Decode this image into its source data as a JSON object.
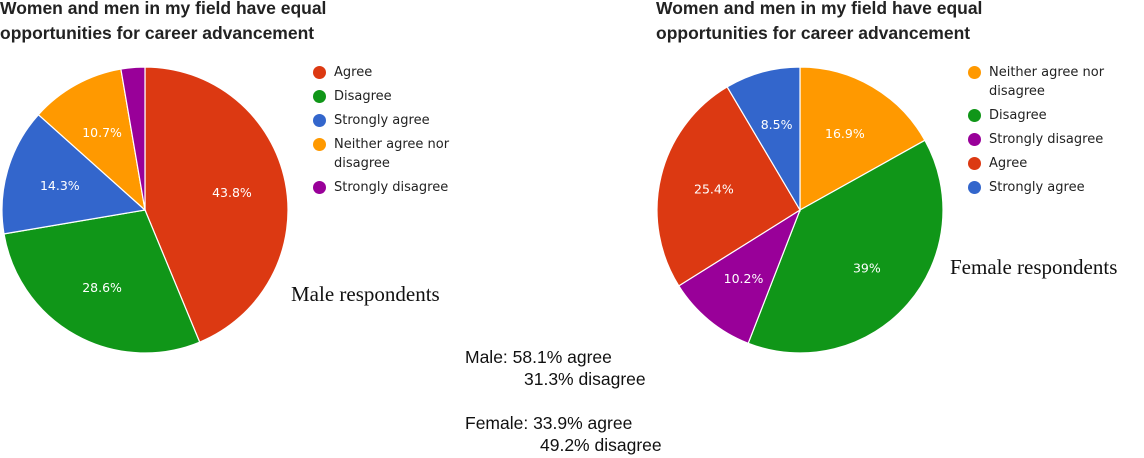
{
  "chart_data": [
    {
      "type": "pie",
      "title_lines": [
        "Women and men in my field have equal",
        "opportunities for career advancement"
      ],
      "subtitle": "Male respondents",
      "legend_position": "right",
      "slices": [
        {
          "name": "Agree",
          "value": 43.8,
          "label": "43.8%",
          "color": "#dc3912"
        },
        {
          "name": "Disagree",
          "value": 28.6,
          "label": "28.6%",
          "color": "#109618"
        },
        {
          "name": "Strongly agree",
          "value": 14.3,
          "label": "14.3%",
          "color": "#3366cc"
        },
        {
          "name": "Neither agree nor disagree",
          "value": 10.7,
          "label": "10.7%",
          "color": "#ff9900"
        },
        {
          "name": "Strongly disagree",
          "value": 2.7,
          "label": "",
          "color": "#990099"
        }
      ],
      "legend": [
        {
          "label": "Agree",
          "color": "#dc3912"
        },
        {
          "label": "Disagree",
          "color": "#109618"
        },
        {
          "label": "Strongly agree",
          "color": "#3366cc"
        },
        {
          "label": "Neither agree nor disagree",
          "color": "#ff9900"
        },
        {
          "label": "Strongly disagree",
          "color": "#990099"
        }
      ]
    },
    {
      "type": "pie",
      "title_lines": [
        "Women and men in my field have equal",
        "opportunities for career advancement"
      ],
      "subtitle": "Female respondents",
      "legend_position": "right",
      "slices": [
        {
          "name": "Neither agree nor disagree",
          "value": 16.9,
          "label": "16.9%",
          "color": "#ff9900"
        },
        {
          "name": "Disagree",
          "value": 39.0,
          "label": "39%",
          "color": "#109618"
        },
        {
          "name": "Strongly disagree",
          "value": 10.2,
          "label": "10.2%",
          "color": "#990099"
        },
        {
          "name": "Agree",
          "value": 25.4,
          "label": "25.4%",
          "color": "#dc3912"
        },
        {
          "name": "Strongly agree",
          "value": 8.5,
          "label": "8.5%",
          "color": "#3366cc"
        }
      ],
      "legend": [
        {
          "label": "Neither agree nor disagree",
          "color": "#ff9900"
        },
        {
          "label": "Disagree",
          "color": "#109618"
        },
        {
          "label": "Strongly disagree",
          "color": "#990099"
        },
        {
          "label": "Agree",
          "color": "#dc3912"
        },
        {
          "label": "Strongly agree",
          "color": "#3366cc"
        }
      ]
    }
  ],
  "summary": {
    "male": {
      "line1": "Male: 58.1% agree",
      "line2": "31.3% disagree"
    },
    "female": {
      "line1": "Female: 33.9% agree",
      "line2": "49.2% disagree"
    }
  }
}
